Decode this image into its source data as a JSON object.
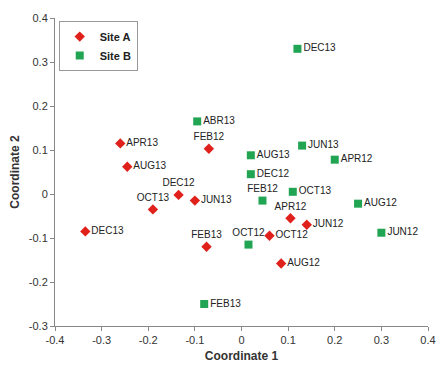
{
  "chart_data": {
    "type": "scatter",
    "x_label": "Coordinate 1",
    "y_label": "Coordinate 2",
    "xlim": [
      -0.4,
      0.4
    ],
    "xticks": [
      -0.4,
      -0.3,
      -0.2,
      -0.1,
      0,
      0.1,
      0.2,
      0.3,
      0.4
    ],
    "ylim": [
      -0.3,
      0.4
    ],
    "yticks": [
      -0.3,
      -0.2,
      -0.1,
      0,
      0.1,
      0.2,
      0.3,
      0.4
    ],
    "grid": false,
    "legend": "top left",
    "series": [
      {
        "name": "Site A",
        "color": "#e0201b",
        "marker": "diamond",
        "labels": [
          "APR13",
          "AUG13",
          "FEB12",
          "DEC12",
          "JUN13",
          "OCT13",
          "DEC13",
          "FEB13",
          "APR12",
          "JUN12",
          "OCT12",
          "AUG12"
        ],
        "x": [
          -0.26,
          -0.245,
          -0.07,
          -0.135,
          -0.1,
          -0.19,
          -0.335,
          -0.075,
          0.105,
          0.14,
          0.06,
          0.085
        ],
        "y": [
          0.115,
          0.062,
          0.103,
          -0.002,
          -0.015,
          -0.035,
          -0.085,
          -0.12,
          -0.055,
          -0.07,
          -0.095,
          -0.158
        ]
      },
      {
        "name": "Site B",
        "color": "#22a553",
        "marker": "square",
        "labels": [
          "DEC13",
          "ABR13",
          "JUN13",
          "APR12",
          "AUG13",
          "DEC12",
          "OCT13",
          "FEB12",
          "AUG12",
          "JUN12",
          "OCT12",
          "FEB13"
        ],
        "x": [
          0.12,
          -0.095,
          0.13,
          0.2,
          0.02,
          0.02,
          0.11,
          0.045,
          0.25,
          0.3,
          0.015,
          -0.08
        ],
        "y": [
          0.33,
          0.165,
          0.11,
          0.078,
          0.088,
          0.045,
          0.005,
          -0.015,
          -0.022,
          -0.088,
          -0.115,
          -0.25
        ]
      }
    ]
  }
}
